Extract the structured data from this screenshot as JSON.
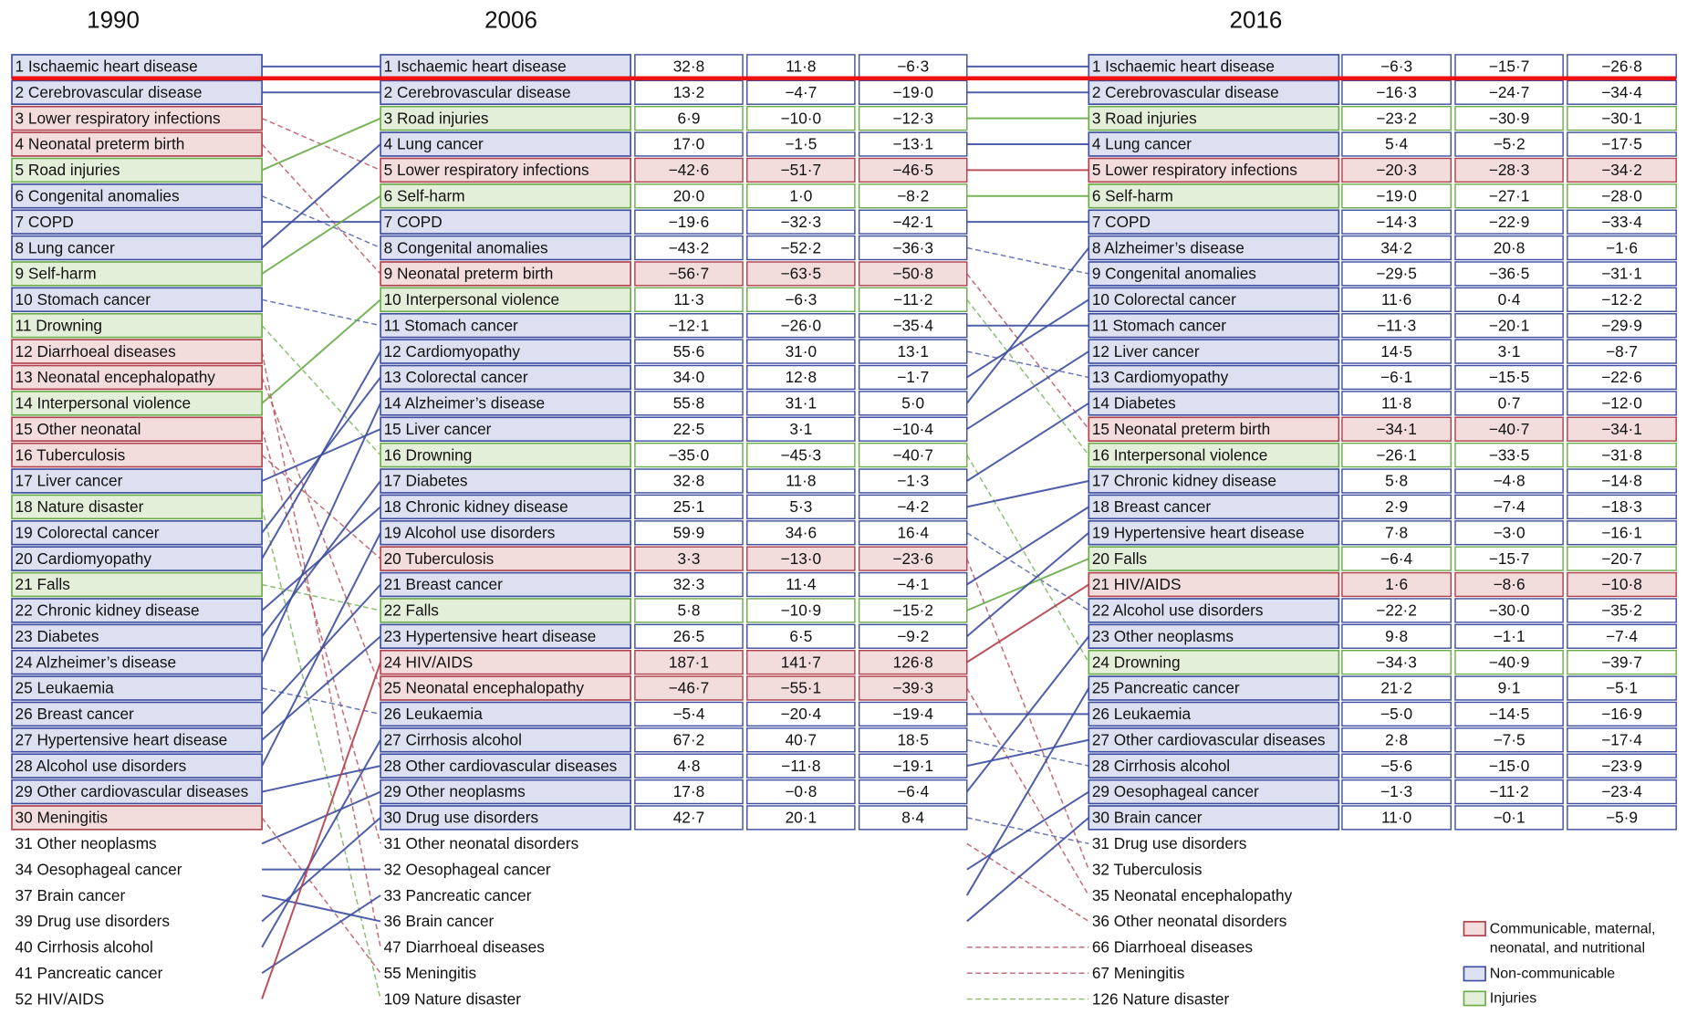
{
  "legend": [
    {
      "lines": [
        "Communicable, maternal,",
        "neonatal, and nutritional"
      ],
      "color": "#b0404c",
      "fill": "#f2dcdc"
    },
    {
      "lines": [
        "Non-communicable"
      ],
      "color": "#3d4ea0",
      "fill": "#dde0f0"
    },
    {
      "lines": [
        "Injuries"
      ],
      "color": "#6aab4a",
      "fill": "#e4efd9"
    }
  ],
  "columns": [
    {
      "year": "1990",
      "rows": [
        {
          "label": "1 Ischaemic heart disease",
          "color": "#3d4ea0"
        },
        {
          "label": "2 Cerebrovascular disease",
          "color": "#3d4ea0"
        },
        {
          "label": "3 Lower respiratory infections",
          "color": "#b0404c"
        },
        {
          "label": "4 Neonatal preterm birth",
          "color": "#b0404c"
        },
        {
          "label": "5 Road injuries",
          "color": "#6aab4a"
        },
        {
          "label": "6 Congenital anomalies",
          "color": "#3d4ea0"
        },
        {
          "label": "7 COPD",
          "color": "#3d4ea0"
        },
        {
          "label": "8 Lung cancer",
          "color": "#3d4ea0"
        },
        {
          "label": "9 Self-harm",
          "color": "#6aab4a"
        },
        {
          "label": "10 Stomach cancer",
          "color": "#3d4ea0"
        },
        {
          "label": "11 Drowning",
          "color": "#6aab4a"
        },
        {
          "label": "12 Diarrhoeal diseases",
          "color": "#b0404c"
        },
        {
          "label": "13 Neonatal encephalopathy",
          "color": "#b0404c"
        },
        {
          "label": "14 Interpersonal violence",
          "color": "#6aab4a"
        },
        {
          "label": "15 Other neonatal",
          "color": "#b0404c"
        },
        {
          "label": "16 Tuberculosis",
          "color": "#b0404c"
        },
        {
          "label": "17 Liver cancer",
          "color": "#3d4ea0"
        },
        {
          "label": "18 Nature disaster",
          "color": "#6aab4a"
        },
        {
          "label": "19 Colorectal cancer",
          "color": "#3d4ea0"
        },
        {
          "label": "20 Cardiomyopathy",
          "color": "#3d4ea0"
        },
        {
          "label": "21 Falls",
          "color": "#6aab4a"
        },
        {
          "label": "22 Chronic kidney disease",
          "color": "#3d4ea0"
        },
        {
          "label": "23 Diabetes",
          "color": "#3d4ea0"
        },
        {
          "label": "24 Alzheimer’s disease",
          "color": "#3d4ea0"
        },
        {
          "label": "25 Leukaemia",
          "color": "#3d4ea0"
        },
        {
          "label": "26 Breast cancer",
          "color": "#3d4ea0"
        },
        {
          "label": "27 Hypertensive heart disease",
          "color": "#3d4ea0"
        },
        {
          "label": "28 Alcohol use disorders",
          "color": "#3d4ea0"
        },
        {
          "label": "29 Other cardiovascular diseases",
          "color": "#3d4ea0"
        },
        {
          "label": "30 Meningitis",
          "color": "#b0404c"
        }
      ],
      "extra": [
        {
          "label": "31 Other neoplasms",
          "color": "#3d4ea0"
        },
        {
          "label": "34 Oesophageal cancer",
          "color": "#3d4ea0"
        },
        {
          "label": "37 Brain cancer",
          "color": "#3d4ea0"
        },
        {
          "label": "39 Drug use disorders",
          "color": "#3d4ea0"
        },
        {
          "label": "40 Cirrhosis alcohol",
          "color": "#3d4ea0"
        },
        {
          "label": "41 Pancreatic cancer",
          "color": "#3d4ea0"
        },
        {
          "label": "52 HIV/AIDS",
          "color": "#b0404c"
        }
      ]
    },
    {
      "year": "2006",
      "rows": [
        {
          "label": "1 Ischaemic heart disease",
          "color": "#3d4ea0",
          "values": [
            "32·8",
            "11·8",
            "−6·3"
          ]
        },
        {
          "label": "2 Cerebrovascular disease",
          "color": "#3d4ea0",
          "values": [
            "13·2",
            "−4·7",
            "−19·0"
          ]
        },
        {
          "label": "3 Road injuries",
          "color": "#6aab4a",
          "values": [
            "6·9",
            "−10·0",
            "−12·3"
          ]
        },
        {
          "label": "4 Lung cancer",
          "color": "#3d4ea0",
          "values": [
            "17·0",
            "−1·5",
            "−13·1"
          ]
        },
        {
          "label": "5 Lower respiratory infections",
          "color": "#b0404c",
          "values": [
            "−42·6",
            "−51·7",
            "−46·5"
          ]
        },
        {
          "label": "6 Self-harm",
          "color": "#6aab4a",
          "values": [
            "20·0",
            "1·0",
            "−8·2"
          ]
        },
        {
          "label": "7 COPD",
          "color": "#3d4ea0",
          "values": [
            "−19·6",
            "−32·3",
            "−42·1"
          ]
        },
        {
          "label": "8 Congenital anomalies",
          "color": "#3d4ea0",
          "values": [
            "−43·2",
            "−52·2",
            "−36·3"
          ]
        },
        {
          "label": "9 Neonatal preterm birth",
          "color": "#b0404c",
          "values": [
            "−56·7",
            "−63·5",
            "−50·8"
          ]
        },
        {
          "label": "10 Interpersonal violence",
          "color": "#6aab4a",
          "values": [
            "11·3",
            "−6·3",
            "−11·2"
          ]
        },
        {
          "label": "11 Stomach cancer",
          "color": "#3d4ea0",
          "values": [
            "−12·1",
            "−26·0",
            "−35·4"
          ]
        },
        {
          "label": "12 Cardiomyopathy",
          "color": "#3d4ea0",
          "values": [
            "55·6",
            "31·0",
            "13·1"
          ]
        },
        {
          "label": "13 Colorectal cancer",
          "color": "#3d4ea0",
          "values": [
            "34·0",
            "12·8",
            "−1·7"
          ]
        },
        {
          "label": "14 Alzheimer’s disease",
          "color": "#3d4ea0",
          "values": [
            "55·8",
            "31·1",
            "5·0"
          ]
        },
        {
          "label": "15 Liver cancer",
          "color": "#3d4ea0",
          "values": [
            "22·5",
            "3·1",
            "−10·4"
          ]
        },
        {
          "label": "16 Drowning",
          "color": "#6aab4a",
          "values": [
            "−35·0",
            "−45·3",
            "−40·7"
          ]
        },
        {
          "label": "17 Diabetes",
          "color": "#3d4ea0",
          "values": [
            "32·8",
            "11·8",
            "−1·3"
          ]
        },
        {
          "label": "18 Chronic kidney disease",
          "color": "#3d4ea0",
          "values": [
            "25·1",
            "5·3",
            "−4·2"
          ]
        },
        {
          "label": "19 Alcohol use disorders",
          "color": "#3d4ea0",
          "values": [
            "59·9",
            "34·6",
            "16·4"
          ]
        },
        {
          "label": "20 Tuberculosis",
          "color": "#b0404c",
          "values": [
            "3·3",
            "−13·0",
            "−23·6"
          ]
        },
        {
          "label": "21 Breast cancer",
          "color": "#3d4ea0",
          "values": [
            "32·3",
            "11·4",
            "−4·1"
          ]
        },
        {
          "label": "22 Falls",
          "color": "#6aab4a",
          "values": [
            "5·8",
            "−10·9",
            "−15·2"
          ]
        },
        {
          "label": "23 Hypertensive heart disease",
          "color": "#3d4ea0",
          "values": [
            "26·5",
            "6·5",
            "−9·2"
          ]
        },
        {
          "label": "24 HIV/AIDS",
          "color": "#b0404c",
          "values": [
            "187·1",
            "141·7",
            "126·8"
          ]
        },
        {
          "label": "25 Neonatal encephalopathy",
          "color": "#b0404c",
          "values": [
            "−46·7",
            "−55·1",
            "−39·3"
          ]
        },
        {
          "label": "26 Leukaemia",
          "color": "#3d4ea0",
          "values": [
            "−5·4",
            "−20·4",
            "−19·4"
          ]
        },
        {
          "label": "27 Cirrhosis alcohol",
          "color": "#3d4ea0",
          "values": [
            "67·2",
            "40·7",
            "18·5"
          ]
        },
        {
          "label": "28 Other cardiovascular diseases",
          "color": "#3d4ea0",
          "values": [
            "4·8",
            "−11·8",
            "−19·1"
          ]
        },
        {
          "label": "29 Other neoplasms",
          "color": "#3d4ea0",
          "values": [
            "17·8",
            "−0·8",
            "−6·4"
          ]
        },
        {
          "label": "30 Drug use disorders",
          "color": "#3d4ea0",
          "values": [
            "42·7",
            "20·1",
            "8·4"
          ]
        }
      ],
      "extra": [
        {
          "label": "31 Other neonatal disorders",
          "color": "#b0404c"
        },
        {
          "label": "32 Oesophageal cancer",
          "color": "#3d4ea0"
        },
        {
          "label": "33 Pancreatic cancer",
          "color": "#3d4ea0"
        },
        {
          "label": "36 Brain cancer",
          "color": "#3d4ea0"
        },
        {
          "label": "47 Diarrhoeal diseases",
          "color": "#b0404c"
        },
        {
          "label": "55 Meningitis",
          "color": "#b0404c"
        },
        {
          "label": "109 Nature disaster",
          "color": "#6aab4a"
        }
      ]
    },
    {
      "year": "2016",
      "rows": [
        {
          "label": "1 Ischaemic heart disease",
          "color": "#3d4ea0",
          "values": [
            "−6·3",
            "−15·7",
            "−26·8"
          ]
        },
        {
          "label": "2 Cerebrovascular disease",
          "color": "#3d4ea0",
          "values": [
            "−16·3",
            "−24·7",
            "−34·4"
          ]
        },
        {
          "label": "3 Road injuries",
          "color": "#6aab4a",
          "values": [
            "−23·2",
            "−30·9",
            "−30·1"
          ]
        },
        {
          "label": "4 Lung cancer",
          "color": "#3d4ea0",
          "values": [
            "5·4",
            "−5·2",
            "−17·5"
          ]
        },
        {
          "label": "5 Lower respiratory infections",
          "color": "#b0404c",
          "values": [
            "−20·3",
            "−28·3",
            "−34·2"
          ]
        },
        {
          "label": "6 Self-harm",
          "color": "#6aab4a",
          "values": [
            "−19·0",
            "−27·1",
            "−28·0"
          ]
        },
        {
          "label": "7 COPD",
          "color": "#3d4ea0",
          "values": [
            "−14·3",
            "−22·9",
            "−33·4"
          ]
        },
        {
          "label": "8 Alzheimer’s disease",
          "color": "#3d4ea0",
          "values": [
            "34·2",
            "20·8",
            "−1·6"
          ]
        },
        {
          "label": "9 Congenital anomalies",
          "color": "#3d4ea0",
          "values": [
            "−29·5",
            "−36·5",
            "−31·1"
          ]
        },
        {
          "label": "10 Colorectal cancer",
          "color": "#3d4ea0",
          "values": [
            "11·6",
            "0·4",
            "−12·2"
          ]
        },
        {
          "label": "11 Stomach cancer",
          "color": "#3d4ea0",
          "values": [
            "−11·3",
            "−20·1",
            "−29·9"
          ]
        },
        {
          "label": "12 Liver cancer",
          "color": "#3d4ea0",
          "values": [
            "14·5",
            "3·1",
            "−8·7"
          ]
        },
        {
          "label": "13 Cardiomyopathy",
          "color": "#3d4ea0",
          "values": [
            "−6·1",
            "−15·5",
            "−22·6"
          ]
        },
        {
          "label": "14 Diabetes",
          "color": "#3d4ea0",
          "values": [
            "11·8",
            "0·7",
            "−12·0"
          ]
        },
        {
          "label": "15 Neonatal preterm birth",
          "color": "#b0404c",
          "values": [
            "−34·1",
            "−40·7",
            "−34·1"
          ]
        },
        {
          "label": "16 Interpersonal violence",
          "color": "#6aab4a",
          "values": [
            "−26·1",
            "−33·5",
            "−31·8"
          ]
        },
        {
          "label": "17 Chronic kidney disease",
          "color": "#3d4ea0",
          "values": [
            "5·8",
            "−4·8",
            "−14·8"
          ]
        },
        {
          "label": "18 Breast cancer",
          "color": "#3d4ea0",
          "values": [
            "2·9",
            "−7·4",
            "−18·3"
          ]
        },
        {
          "label": "19 Hypertensive heart disease",
          "color": "#3d4ea0",
          "values": [
            "7·8",
            "−3·0",
            "−16·1"
          ]
        },
        {
          "label": "20 Falls",
          "color": "#6aab4a",
          "values": [
            "−6·4",
            "−15·7",
            "−20·7"
          ]
        },
        {
          "label": "21 HIV/AIDS",
          "color": "#b0404c",
          "values": [
            "1·6",
            "−8·6",
            "−10·8"
          ]
        },
        {
          "label": "22 Alcohol use disorders",
          "color": "#3d4ea0",
          "values": [
            "−22·2",
            "−30·0",
            "−35·2"
          ]
        },
        {
          "label": "23 Other neoplasms",
          "color": "#3d4ea0",
          "values": [
            "9·8",
            "−1·1",
            "−7·4"
          ]
        },
        {
          "label": "24 Drowning",
          "color": "#6aab4a",
          "values": [
            "−34·3",
            "−40·9",
            "−39·7"
          ]
        },
        {
          "label": "25 Pancreatic cancer",
          "color": "#3d4ea0",
          "values": [
            "21·2",
            "9·1",
            "−5·1"
          ]
        },
        {
          "label": "26 Leukaemia",
          "color": "#3d4ea0",
          "values": [
            "−5·0",
            "−14·5",
            "−16·9"
          ]
        },
        {
          "label": "27 Other cardiovascular diseases",
          "color": "#3d4ea0",
          "values": [
            "2·8",
            "−7·5",
            "−17·4"
          ]
        },
        {
          "label": "28 Cirrhosis alcohol",
          "color": "#3d4ea0",
          "values": [
            "−5·6",
            "−15·0",
            "−23·9"
          ]
        },
        {
          "label": "29 Oesophageal cancer",
          "color": "#3d4ea0",
          "values": [
            "−1·3",
            "−11·2",
            "−23·4"
          ]
        },
        {
          "label": "30 Brain cancer",
          "color": "#3d4ea0",
          "values": [
            "11·0",
            "−0·1",
            "−5·9"
          ]
        }
      ],
      "extra": [
        {
          "label": "31 Drug use disorders",
          "color": "#3d4ea0"
        },
        {
          "label": "32 Tuberculosis",
          "color": "#b0404c"
        },
        {
          "label": "35 Neonatal encephalopathy",
          "color": "#b0404c"
        },
        {
          "label": "36 Other neonatal disorders",
          "color": "#b0404c"
        },
        {
          "label": "66 Diarrhoeal diseases",
          "color": "#b0404c"
        },
        {
          "label": "67 Meningitis",
          "color": "#b0404c"
        },
        {
          "label": "126 Nature disaster",
          "color": "#6aab4a"
        }
      ]
    }
  ]
}
